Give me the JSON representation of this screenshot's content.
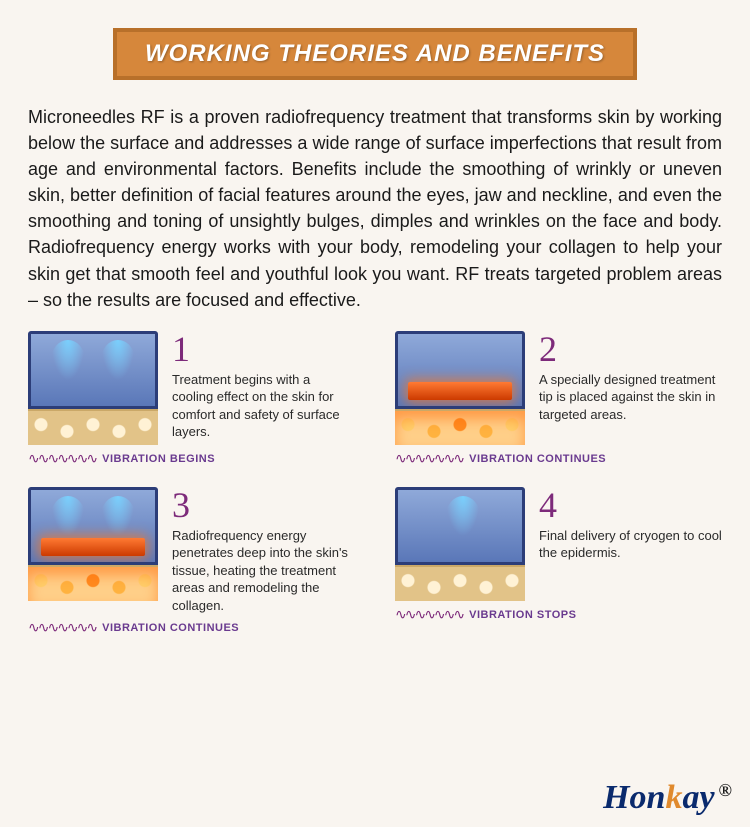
{
  "colors": {
    "banner_bg": "#d6873b",
    "banner_border": "#b8702a",
    "banner_text": "#ffffff",
    "page_bg": "#f9f5f0",
    "step_number": "#7d2a7a",
    "caption": "#6a3a8f",
    "wave": "#7d2a7a",
    "body_text": "#1a1a1a",
    "brand_blue": "#0a2a6d",
    "brand_orange": "#e08a2e"
  },
  "banner": {
    "title": "WORKING THEORIES AND BENEFITS"
  },
  "intro": "Microneedles RF  is a proven radiofrequency treatment that transforms skin by working below the surface and addresses a wide range of surface imperfections that result from age and environmental factors. Benefits include the smoothing of wrinkly or uneven skin, better definition of facial features around the eyes, jaw and neckline, and even the smoothing and toning of unsightly bulges, dimples and wrinkles on the face and body. Radiofrequency energy works with your body, remodeling your collagen to help your skin get that smooth feel and youthful look you want. RF treats targeted problem areas – so the results are focused and effective.",
  "steps": [
    {
      "number": "1",
      "desc": "Treatment begins with a cooling effect on the skin for comfort and safety of surface layers.",
      "caption": "VIBRATION BEGINS",
      "diagram": {
        "sprays": 2,
        "heat_plate": false,
        "tissue_glow": false
      }
    },
    {
      "number": "2",
      "desc": "A specially designed treatment tip is placed against the skin in targeted areas.",
      "caption": "VIBRATION CONTINUES",
      "diagram": {
        "sprays": 0,
        "heat_plate": true,
        "tissue_glow": true
      }
    },
    {
      "number": "3",
      "desc": "Radiofrequency energy penetrates deep into the skin's tissue, heating the treatment areas and remodeling the collagen.",
      "caption": "VIBRATION CONTINUES",
      "diagram": {
        "sprays": 2,
        "heat_plate": true,
        "tissue_glow": true
      }
    },
    {
      "number": "4",
      "desc": "Final delivery of cryogen to cool the epidermis.",
      "caption": "VIBRATION STOPS",
      "diagram": {
        "sprays": 1,
        "heat_plate": false,
        "tissue_glow": false
      }
    }
  ],
  "wave_glyph": "∿∿∿∿∿∿∿",
  "brand": {
    "pre": "Hon",
    "accent": "k",
    "post": "ay",
    "mark": "®"
  }
}
